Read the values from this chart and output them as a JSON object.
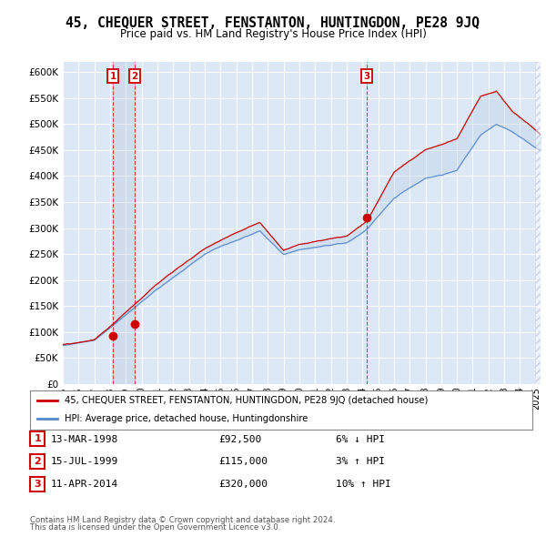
{
  "title": "45, CHEQUER STREET, FENSTANTON, HUNTINGDON, PE28 9JQ",
  "subtitle": "Price paid vs. HM Land Registry's House Price Index (HPI)",
  "red_line_label": "45, CHEQUER STREET, FENSTANTON, HUNTINGDON, PE28 9JQ (detached house)",
  "blue_line_label": "HPI: Average price, detached house, Huntingdonshire",
  "transactions": [
    {
      "num": 1,
      "date": "13-MAR-1998",
      "price": 92500,
      "pct": "6%",
      "dir": "↓",
      "year": 1998.19
    },
    {
      "num": 2,
      "date": "15-JUL-1999",
      "price": 115000,
      "pct": "3%",
      "dir": "↑",
      "year": 1999.54
    },
    {
      "num": 3,
      "date": "11-APR-2014",
      "price": 320000,
      "pct": "10%",
      "dir": "↑",
      "year": 2014.28
    }
  ],
  "footnote1": "Contains HM Land Registry data © Crown copyright and database right 2024.",
  "footnote2": "This data is licensed under the Open Government Licence v3.0.",
  "ylim": [
    0,
    620000
  ],
  "yticks": [
    0,
    50000,
    100000,
    150000,
    200000,
    250000,
    300000,
    350000,
    400000,
    450000,
    500000,
    550000,
    600000
  ],
  "xmin": 1995.0,
  "xmax": 2025.3,
  "bg_color": "#ffffff",
  "plot_bg_color": "#dce8f5",
  "grid_color": "#ffffff",
  "red_color": "#cc0000",
  "blue_color": "#5588cc",
  "fill_color": "#b8d0e8"
}
